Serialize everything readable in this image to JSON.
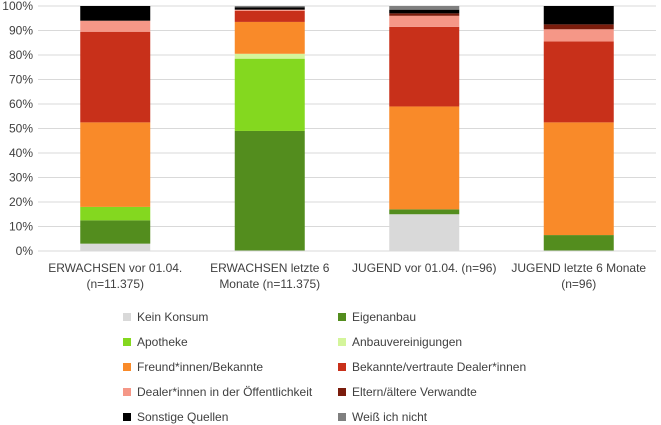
{
  "chart_data": {
    "type": "bar",
    "stacked": true,
    "percent_stacked": true,
    "categories": [
      [
        "ERWACHSEN vor 01.04.",
        "(n=11.375)"
      ],
      [
        "ERWACHSEN letzte 6",
        "Monate (n=11.375)"
      ],
      [
        "JUGEND vor 01.04. (n=96)"
      ],
      [
        "JUGEND letzte 6 Monate",
        "(n=96)"
      ]
    ],
    "ylim": [
      0,
      100
    ],
    "yticks": [
      "0%",
      "10%",
      "20%",
      "30%",
      "40%",
      "50%",
      "60%",
      "70%",
      "80%",
      "90%",
      "100%"
    ],
    "grid": true,
    "legend_position": "bottom",
    "series": [
      {
        "name": "Kein Konsum",
        "color": "#d9d9d9",
        "values": [
          3,
          0,
          15,
          0
        ]
      },
      {
        "name": "Eigenanbau",
        "color": "#538d1e",
        "values": [
          9.5,
          49,
          2,
          6.5
        ]
      },
      {
        "name": "Apotheke",
        "color": "#84d81f",
        "values": [
          5.5,
          29.5,
          0,
          0
        ]
      },
      {
        "name": "Anbauvereinigungen",
        "color": "#d4f59b",
        "values": [
          0,
          2,
          0,
          0
        ]
      },
      {
        "name": "Freund*innen/Bekannte",
        "color": "#f98a29",
        "values": [
          34.5,
          13,
          42,
          46
        ]
      },
      {
        "name": "Bekannte/vertraute Dealer*innen",
        "color": "#c8301a",
        "values": [
          37,
          4.5,
          32.5,
          33
        ]
      },
      {
        "name": "Dealer*innen in der Öffentlichkeit",
        "color": "#f59787",
        "values": [
          4.5,
          0.5,
          4.5,
          5
        ]
      },
      {
        "name": "Eltern/ältere Verwandte",
        "color": "#7a1c0c",
        "values": [
          0,
          0,
          1,
          2
        ]
      },
      {
        "name": "Sonstige Quellen",
        "color": "#000000",
        "values": [
          6,
          1,
          1.5,
          7.5
        ]
      },
      {
        "name": "Weiß ich nicht",
        "color": "#7f7f7f",
        "values": [
          0,
          0.5,
          1.5,
          0
        ]
      }
    ]
  }
}
